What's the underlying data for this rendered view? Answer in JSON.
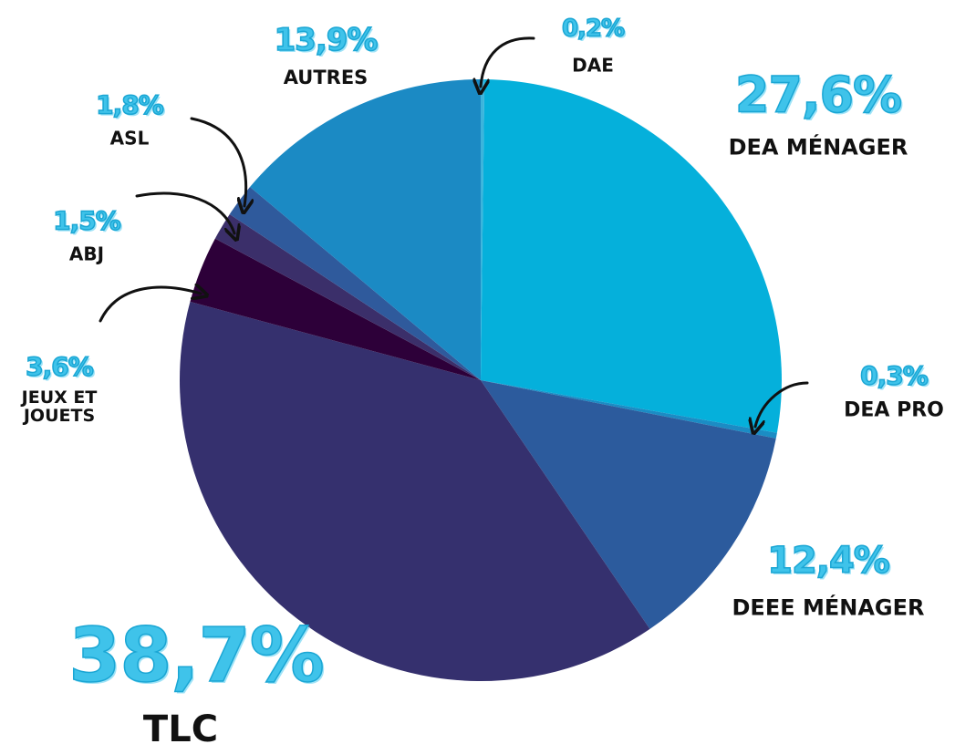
{
  "chart_data": {
    "type": "pie",
    "categories": [
      "DAE",
      "DEA MÉNAGER",
      "DEA PRO",
      "DEEE MÉNAGER",
      "TLC",
      "JEUX ET JOUETS",
      "ABJ",
      "ASL",
      "AUTRES"
    ],
    "values": [
      0.2,
      27.6,
      0.3,
      12.4,
      38.7,
      3.6,
      1.5,
      1.8,
      13.9
    ],
    "value_labels": [
      "0,2%",
      "27,6%",
      "0,3%",
      "12,4%",
      "38,7%",
      "3,6%",
      "1,5%",
      "1,8%",
      "13,9%"
    ],
    "colors": [
      "#3db4dc",
      "#05b0db",
      "#1b8cc4",
      "#2c5b9d",
      "#35306e",
      "#2d0039",
      "#3b2f6a",
      "#2f5a9c",
      "#1b8ac4"
    ]
  }
}
